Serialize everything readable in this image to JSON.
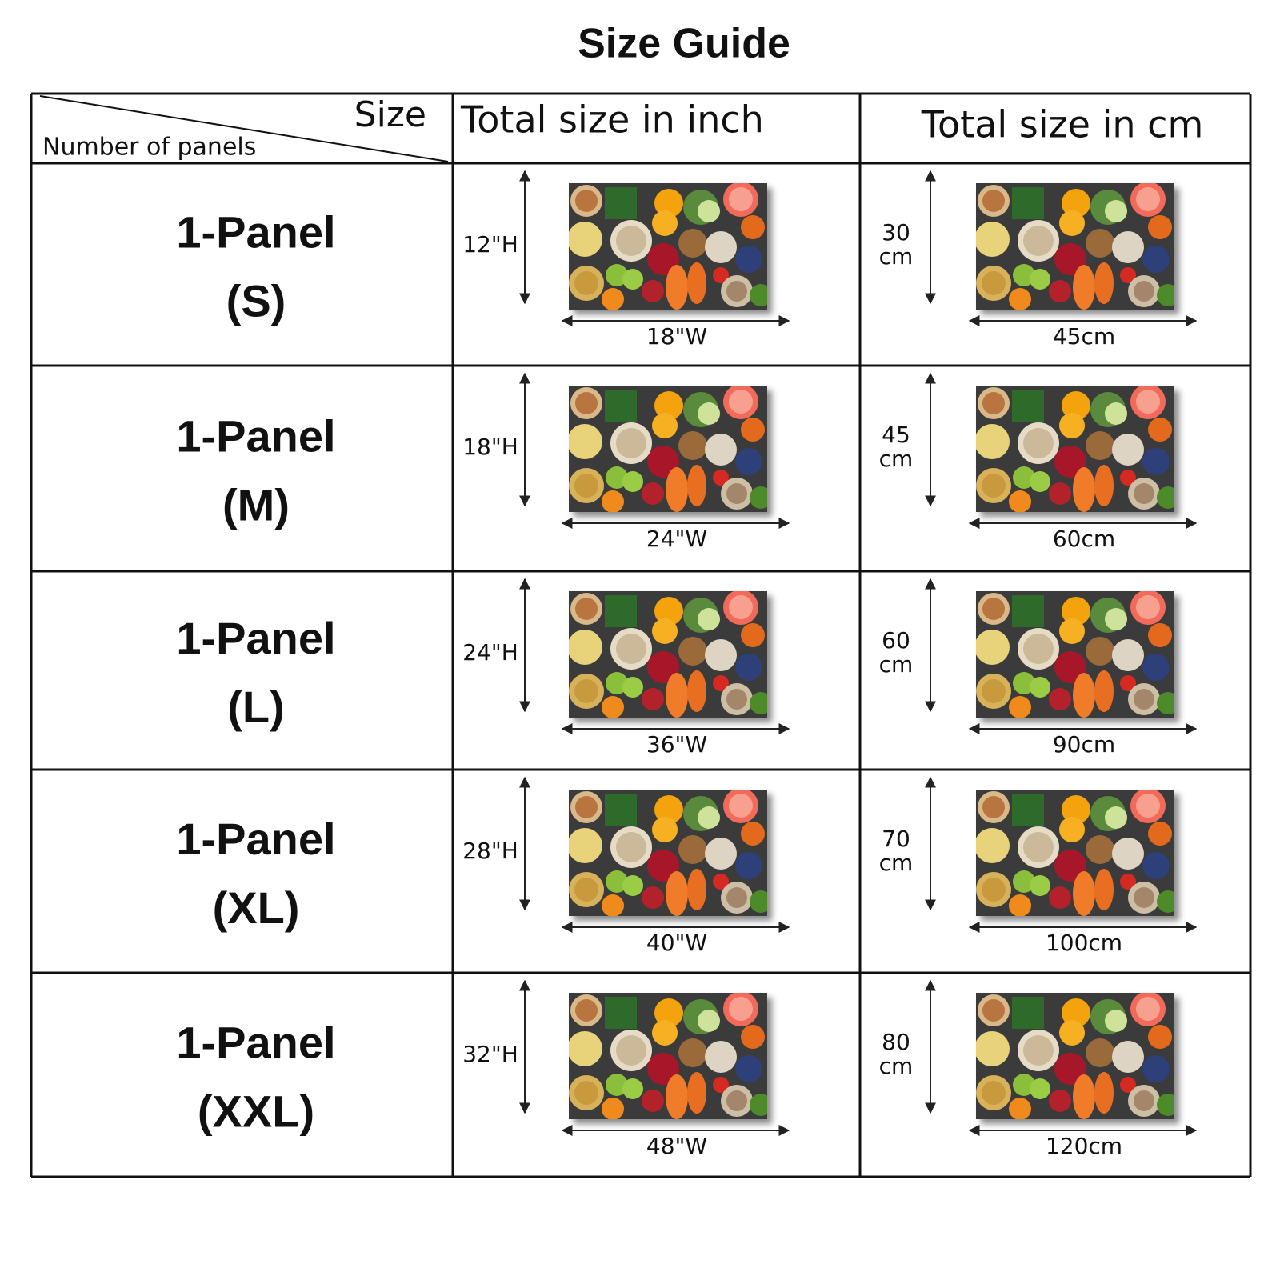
{
  "title": "Size Guide",
  "header": {
    "size": "Size",
    "panels": "Number of panels",
    "inch": "Total size in inch",
    "cm": "Total size in cm"
  },
  "rows": [
    {
      "panel": "1-Panel",
      "size": "(S)",
      "inch_height": "12\"H",
      "inch_width": "18\"W",
      "cm_height": "30",
      "cm_height_unit": "cm",
      "cm_width": "45cm"
    },
    {
      "panel": "1-Panel",
      "size": "(M)",
      "inch_height": "18\"H",
      "inch_width": "24\"W",
      "cm_height": "45",
      "cm_height_unit": "cm",
      "cm_width": "60cm"
    },
    {
      "panel": "1-Panel",
      "size": "(L)",
      "inch_height": "24\"H",
      "inch_width": "36\"W",
      "cm_height": "60",
      "cm_height_unit": "cm",
      "cm_width": "90cm"
    },
    {
      "panel": "1-Panel",
      "size": "(XL)",
      "inch_height": "28\"H",
      "inch_width": "40\"W",
      "cm_height": "70",
      "cm_height_unit": "cm",
      "cm_width": "100cm"
    },
    {
      "panel": "1-Panel",
      "size": "(XXL)",
      "inch_height": "32\"H",
      "inch_width": "48\"W",
      "cm_height": "80",
      "cm_height_unit": "cm",
      "cm_width": "120cm"
    }
  ]
}
